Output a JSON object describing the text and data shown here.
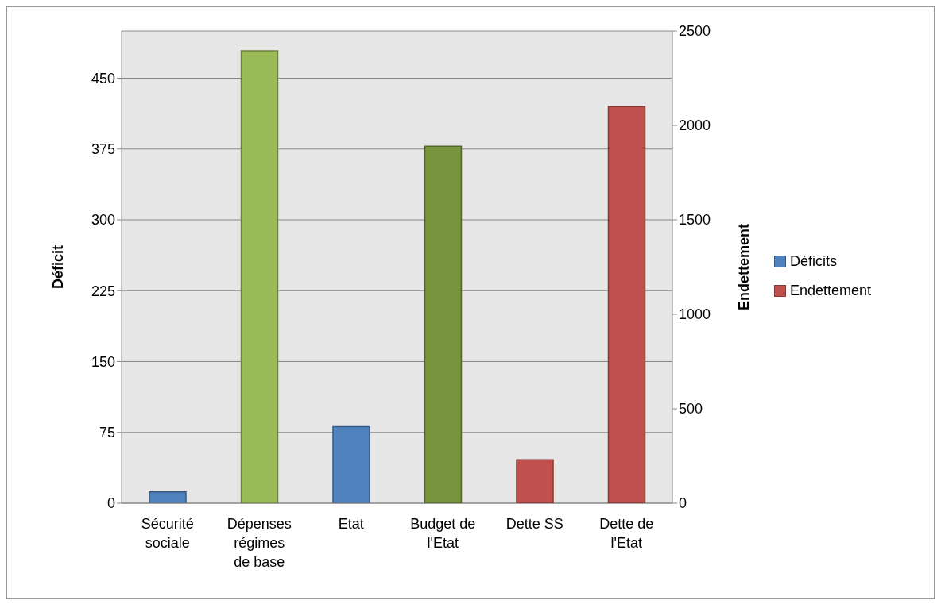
{
  "chart_data": {
    "type": "bar",
    "categories": [
      "Sécurité sociale",
      "Dépenses régimes de base",
      "Etat",
      "Budget de l'Etat",
      "Dette SS",
      "Dette de l'Etat"
    ],
    "series": [
      {
        "name": "Déficits",
        "color": "#4f81bd",
        "values": [
          12,
          null,
          81,
          null,
          null,
          null
        ]
      },
      {
        "color": "#9bbb59",
        "colors": [
          null,
          "#9bbb59",
          null,
          "#77933c",
          null,
          null
        ],
        "values": [
          null,
          479,
          null,
          378,
          null,
          null
        ]
      },
      {
        "name": "Endettement",
        "color": "#c0504d",
        "axis": "y2",
        "values": [
          null,
          null,
          null,
          null,
          230,
          2100
        ]
      }
    ],
    "ylabel": "Déficit",
    "y2label": "Endettement",
    "ylim": [
      0,
      500
    ],
    "yticks": [
      0,
      75,
      150,
      225,
      300,
      375,
      450
    ],
    "y2lim": [
      0,
      2500
    ],
    "y2ticks": [
      0,
      500,
      1000,
      1500,
      2000,
      2500
    ],
    "grid": "y",
    "legend": "right"
  }
}
